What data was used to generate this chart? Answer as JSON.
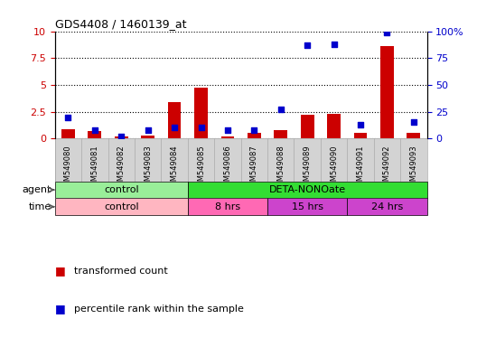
{
  "title": "GDS4408 / 1460139_at",
  "samples": [
    "GSM549080",
    "GSM549081",
    "GSM549082",
    "GSM549083",
    "GSM549084",
    "GSM549085",
    "GSM549086",
    "GSM549087",
    "GSM549088",
    "GSM549089",
    "GSM549090",
    "GSM549091",
    "GSM549092",
    "GSM549093"
  ],
  "transformed_count": [
    0.9,
    0.7,
    0.15,
    0.25,
    3.4,
    4.75,
    0.15,
    0.5,
    0.8,
    2.2,
    2.3,
    0.5,
    8.6,
    0.5
  ],
  "percentile_rank": [
    20,
    8,
    2,
    8,
    10,
    10,
    8,
    8,
    27,
    87,
    88,
    13,
    99,
    15
  ],
  "ylim_left": [
    0,
    10
  ],
  "ylim_right": [
    0,
    100
  ],
  "yticks_left": [
    0,
    2.5,
    5,
    7.5,
    10
  ],
  "yticks_right": [
    0,
    25,
    50,
    75,
    100
  ],
  "ytick_labels_right": [
    "0",
    "25",
    "50",
    "75",
    "100%"
  ],
  "bar_color": "#cc0000",
  "dot_color": "#0000cc",
  "bg_color": "#ffffff",
  "tick_bg_color": "#d3d3d3",
  "tick_border_color": "#aaaaaa",
  "agent_groups": [
    {
      "label": "control",
      "start": 0,
      "end": 5,
      "color": "#99EE99"
    },
    {
      "label": "DETA-NONOate",
      "start": 5,
      "end": 14,
      "color": "#33DD33"
    }
  ],
  "time_groups": [
    {
      "label": "control",
      "start": 0,
      "end": 5,
      "color": "#FFB6C1"
    },
    {
      "label": "8 hrs",
      "start": 5,
      "end": 8,
      "color": "#FF69B4"
    },
    {
      "label": "15 hrs",
      "start": 8,
      "end": 11,
      "color": "#CC44CC"
    },
    {
      "label": "24 hrs",
      "start": 11,
      "end": 14,
      "color": "#CC44CC"
    }
  ],
  "legend_items": [
    {
      "label": "transformed count",
      "color": "#cc0000"
    },
    {
      "label": "percentile rank within the sample",
      "color": "#0000cc"
    }
  ]
}
